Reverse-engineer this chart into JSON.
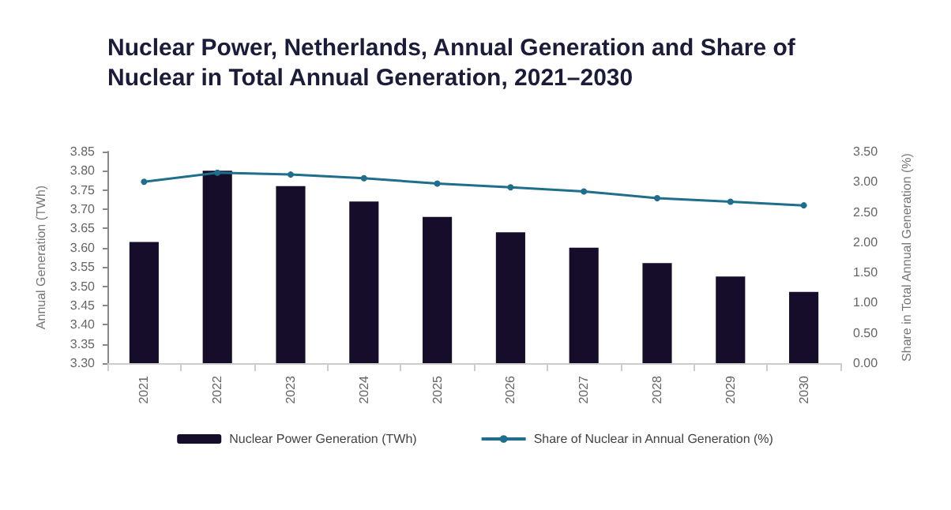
{
  "chart_data": {
    "type": "bar",
    "title": "Nuclear Power, Netherlands, Annual Generation and Share of Nuclear in Total Annual Generation, 2021–2030",
    "categories": [
      "2021",
      "2022",
      "2023",
      "2024",
      "2025",
      "2026",
      "2027",
      "2028",
      "2029",
      "2030"
    ],
    "series": [
      {
        "name": "Nuclear Power Generation (TWh)",
        "color": "#160d2b",
        "values": [
          3.615,
          3.8,
          3.76,
          3.72,
          3.68,
          3.64,
          3.6,
          3.56,
          3.525,
          3.485
        ]
      },
      {
        "name": "Share of Nuclear in Annual Generation (%)",
        "type": "line",
        "axis": "y2",
        "color": "#1f6e8c",
        "marker": "circle",
        "values": [
          3.0,
          3.15,
          3.12,
          3.06,
          2.97,
          2.91,
          2.84,
          2.73,
          2.67,
          2.61
        ]
      }
    ],
    "ylabel": "Annual Generation (TWh)",
    "y2label": "Share in Total Annual Generation (%)",
    "ylim": [
      3.3,
      3.85
    ],
    "yticks": [
      {
        "value": 3.3,
        "label": "3.30"
      },
      {
        "value": 3.35,
        "label": "3.35"
      },
      {
        "value": 3.4,
        "label": "3.40"
      },
      {
        "value": 3.45,
        "label": "3.45"
      },
      {
        "value": 3.5,
        "label": "3.50"
      },
      {
        "value": 3.55,
        "label": "3.55"
      },
      {
        "value": 3.6,
        "label": "3.60"
      },
      {
        "value": 3.65,
        "label": "3.65"
      },
      {
        "value": 3.7,
        "label": "3.70"
      },
      {
        "value": 3.75,
        "label": "3.75"
      },
      {
        "value": 3.8,
        "label": "3.80"
      },
      {
        "value": 3.85,
        "label": "3.85"
      }
    ],
    "y2lim": [
      0,
      3.5
    ],
    "y2ticks": [
      {
        "value": 0,
        "label": "0.00"
      },
      {
        "value": 0.5,
        "label": "0.50"
      },
      {
        "value": 1,
        "label": "1.00"
      },
      {
        "value": 1.5,
        "label": "1.50"
      },
      {
        "value": 2,
        "label": "2.00"
      },
      {
        "value": 2.5,
        "label": "2.50"
      },
      {
        "value": 3,
        "label": "3.00"
      },
      {
        "value": 3.5,
        "label": "3.50"
      }
    ],
    "grid": false,
    "legend": "bottom"
  }
}
